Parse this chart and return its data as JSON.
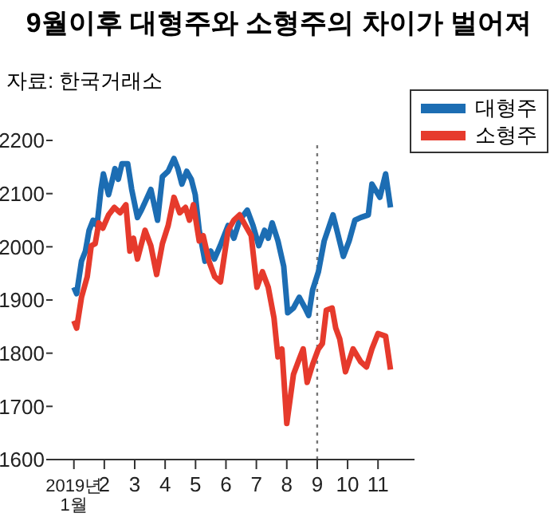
{
  "chart_data": {
    "type": "line",
    "title": "9월이후 대형주와 소형주의 차이가 벌어져",
    "subtitle": "자료: 한국거래소",
    "series": [
      {
        "name": "대형주",
        "color": "#1c6db3",
        "x": [
          1.0,
          1.09,
          1.25,
          1.38,
          1.5,
          1.63,
          1.76,
          1.89,
          1.97,
          2.14,
          2.27,
          2.35,
          2.46,
          2.58,
          2.77,
          2.9,
          3.09,
          3.22,
          3.34,
          3.53,
          3.66,
          3.75,
          3.91,
          4.1,
          4.29,
          4.42,
          4.55,
          4.71,
          4.86,
          4.99,
          5.12,
          5.31,
          5.5,
          5.62,
          5.81,
          6.07,
          6.26,
          6.45,
          6.7,
          6.89,
          7.08,
          7.27,
          7.39,
          7.52,
          7.71,
          7.9,
          8.03,
          8.22,
          8.41,
          8.6,
          8.72,
          8.85,
          9.04,
          9.23,
          9.52,
          9.67,
          9.86,
          10.05,
          10.24,
          10.43,
          10.68,
          10.8,
          11.06,
          11.25,
          11.41
        ],
        "values": [
          1924,
          1912,
          1973,
          1992,
          2031,
          2050,
          2040,
          2108,
          2137,
          2098,
          2127,
          2147,
          2127,
          2156,
          2156,
          2108,
          2055,
          2069,
          2084,
          2108,
          2074,
          2050,
          2132,
          2142,
          2166,
          2147,
          2118,
          2142,
          2127,
          2098,
          2031,
          1973,
          1992,
          1977,
          2002,
          2040,
          2016,
          2050,
          2069,
          2040,
          2002,
          2031,
          2016,
          2045,
          2011,
          1963,
          1876,
          1885,
          1905,
          1885,
          1871,
          1919,
          1953,
          2011,
          2060,
          2026,
          1982,
          2011,
          2050,
          2055,
          2060,
          2118,
          2093,
          2137,
          2074
        ]
      },
      {
        "name": "소형주",
        "color": "#e63a2c",
        "x": [
          1.0,
          1.09,
          1.25,
          1.44,
          1.57,
          1.7,
          1.82,
          1.95,
          2.14,
          2.33,
          2.52,
          2.71,
          2.84,
          2.96,
          3.09,
          3.34,
          3.53,
          3.72,
          3.91,
          4.1,
          4.29,
          4.48,
          4.67,
          4.8,
          4.93,
          5.12,
          5.25,
          5.44,
          5.63,
          5.82,
          6.07,
          6.26,
          6.45,
          6.64,
          6.83,
          7.02,
          7.2,
          7.39,
          7.58,
          7.71,
          7.84,
          8.0,
          8.22,
          8.41,
          8.54,
          8.67,
          8.85,
          9.04,
          9.17,
          9.3,
          9.49,
          9.61,
          9.74,
          9.93,
          10.18,
          10.43,
          10.62,
          10.8,
          11.0,
          11.25,
          11.41
        ],
        "values": [
          1861,
          1847,
          1905,
          1944,
          2002,
          2006,
          2045,
          2035,
          2060,
          2074,
          2064,
          2079,
          1992,
          2016,
          1977,
          2031,
          2002,
          1948,
          2006,
          2040,
          2093,
          2064,
          2074,
          2050,
          2079,
          2011,
          2021,
          1973,
          1944,
          1934,
          2031,
          2050,
          2060,
          2040,
          2021,
          1924,
          1953,
          1924,
          1866,
          1793,
          1808,
          1668,
          1760,
          1789,
          1808,
          1745,
          1779,
          1808,
          1818,
          1881,
          1885,
          1847,
          1827,
          1765,
          1808,
          1784,
          1774,
          1808,
          1837,
          1832,
          1769
        ]
      }
    ],
    "xlim": [
      0.3,
      12.2
    ],
    "xticks": [
      {
        "value": 1,
        "label": "2019년1월"
      },
      {
        "value": 2,
        "label": "2"
      },
      {
        "value": 3,
        "label": "3"
      },
      {
        "value": 4,
        "label": "4"
      },
      {
        "value": 5,
        "label": "5"
      },
      {
        "value": 6,
        "label": "6"
      },
      {
        "value": 7,
        "label": "7"
      },
      {
        "value": 8,
        "label": "8"
      },
      {
        "value": 9,
        "label": "9"
      },
      {
        "value": 10,
        "label": "10"
      },
      {
        "value": 11,
        "label": "11"
      }
    ],
    "ylim": [
      1600,
      2200
    ],
    "yticks": [
      1600,
      1700,
      1800,
      1900,
      2000,
      2100,
      2200
    ],
    "ref_lines": [
      {
        "axis": "x",
        "value": 9,
        "color": "#777777",
        "line_style": "dotted"
      }
    ],
    "legend": "top right",
    "grid": false,
    "marker": "none",
    "line_style": "solid"
  }
}
